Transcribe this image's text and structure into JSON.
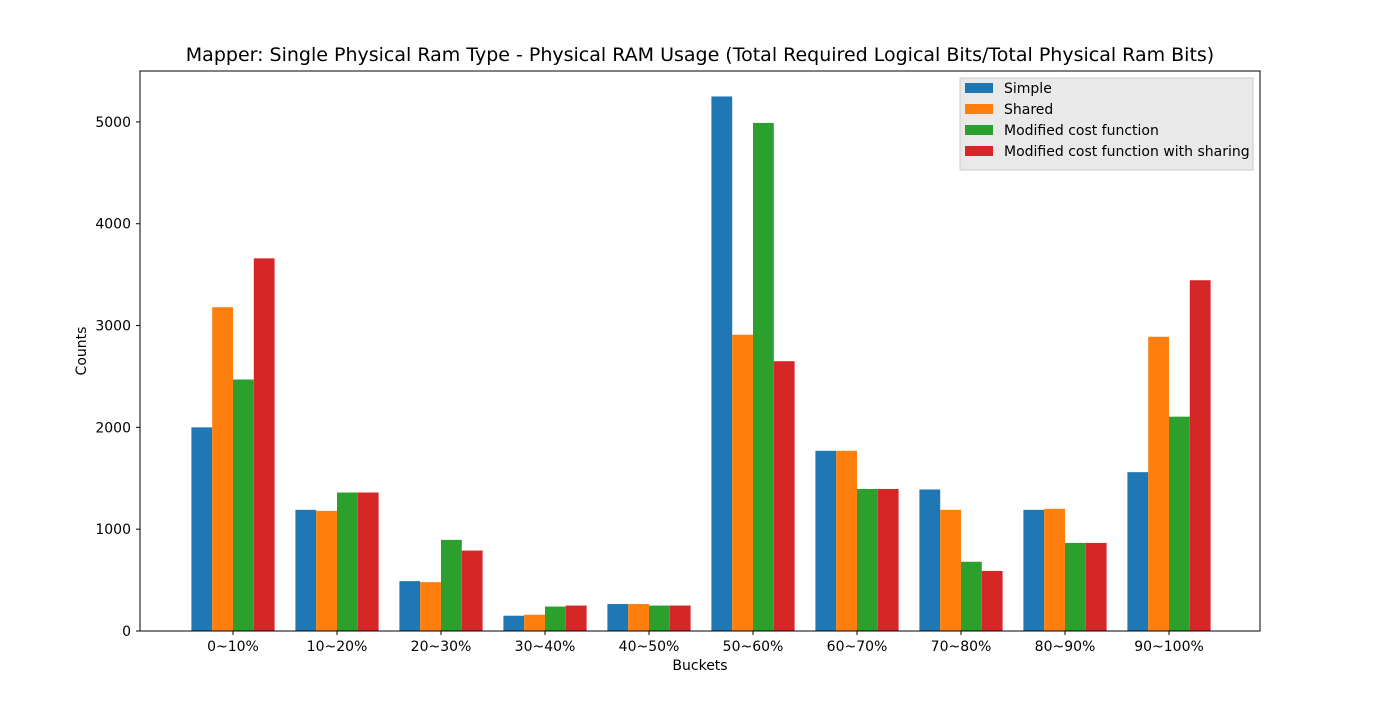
{
  "chart_data": {
    "type": "bar",
    "title": "Mapper: Single Physical Ram Type - Physical RAM Usage (Total Required Logical Bits/Total Physical Ram Bits)",
    "xlabel": "Buckets",
    "ylabel": "Counts",
    "ylim": [
      0,
      5500
    ],
    "yticks": [
      0,
      1000,
      2000,
      3000,
      4000,
      5000
    ],
    "grid": false,
    "legend_position": "top-right",
    "categories": [
      "0~10%",
      "10~20%",
      "20~30%",
      "30~40%",
      "40~50%",
      "50~60%",
      "60~70%",
      "70~80%",
      "80~90%",
      "90~100%"
    ],
    "series": [
      {
        "name": "Simple",
        "color": "#1f77b4",
        "values": [
          2000,
          1190,
          490,
          150,
          265,
          5250,
          1770,
          1390,
          1190,
          1560
        ]
      },
      {
        "name": "Shared",
        "color": "#ff7f0e",
        "values": [
          3180,
          1180,
          480,
          160,
          265,
          2910,
          1770,
          1190,
          1200,
          2890
        ]
      },
      {
        "name": "Modified cost function",
        "color": "#2ca02c",
        "values": [
          2470,
          1360,
          895,
          240,
          250,
          4990,
          1395,
          680,
          865,
          2105
        ]
      },
      {
        "name": "Modified cost function with sharing",
        "color": "#d62728",
        "values": [
          3660,
          1360,
          790,
          250,
          250,
          2650,
          1395,
          590,
          865,
          3445
        ]
      }
    ]
  }
}
